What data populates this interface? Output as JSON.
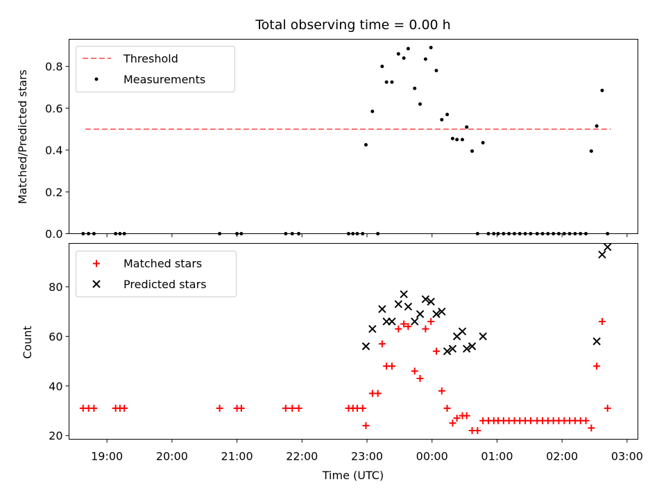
{
  "chart_data": [
    {
      "type": "scatter",
      "title": "Total observing time = 0.00 h",
      "xlabel": "",
      "ylabel": "Matched/Predicted stars",
      "xlim": [
        "18:25",
        "03:10"
      ],
      "ylim": [
        0,
        0.93
      ],
      "yticks": [
        "0.0",
        "0.2",
        "0.4",
        "0.6",
        "0.8"
      ],
      "yticks_values": [
        0,
        0.2,
        0.4,
        0.6,
        0.8
      ],
      "legend": {
        "position": "top-left",
        "entries": [
          "Threshold",
          "Measurements"
        ]
      },
      "threshold": {
        "name": "Threshold",
        "value": 0.5,
        "x_start": "18:40",
        "x_end": "02:45",
        "color": "#ff7070"
      },
      "series": [
        {
          "name": "Measurements",
          "color": "#000000",
          "x": [
            "18:38",
            "18:43",
            "18:48",
            "19:08",
            "19:12",
            "19:16",
            "20:44",
            "21:00",
            "21:04",
            "21:45",
            "21:51",
            "21:57",
            "22:43",
            "22:47",
            "22:51",
            "22:56",
            "22:59",
            "23:05",
            "23:10",
            "23:14",
            "23:18",
            "23:23",
            "23:29",
            "23:34",
            "23:38",
            "23:44",
            "23:49",
            "23:54",
            "23:59",
            "24:04",
            "24:09",
            "24:14",
            "24:19",
            "24:23",
            "24:28",
            "24:32",
            "24:37",
            "24:42",
            "24:47",
            "24:52",
            "24:57",
            "25:01",
            "25:06",
            "25:11",
            "25:16",
            "25:21",
            "25:26",
            "25:31",
            "25:37",
            "25:42",
            "25:47",
            "25:52",
            "25:57",
            "26:02",
            "26:07",
            "26:12",
            "26:17",
            "26:22",
            "26:27",
            "26:32",
            "26:37",
            "26:42"
          ],
          "y": [
            0,
            0,
            0,
            0,
            0,
            0,
            0,
            0,
            0,
            0,
            0,
            0,
            0,
            0,
            0,
            0,
            0.425,
            0.585,
            0,
            0.8,
            0.725,
            0.725,
            0.86,
            0.84,
            0.885,
            0.695,
            0.62,
            0.835,
            0.89,
            0.78,
            0.545,
            0.57,
            0.455,
            0.45,
            0.45,
            0.51,
            0.395,
            0,
            0.435,
            0,
            0,
            0,
            0,
            0,
            0,
            0,
            0,
            0,
            0,
            0,
            0,
            0,
            0,
            0,
            0,
            0,
            0,
            0,
            0.395,
            0.515,
            0.685,
            0
          ]
        }
      ]
    },
    {
      "type": "scatter",
      "title": "",
      "xlabel": "Time (UTC)",
      "ylabel": "Count",
      "xlim": [
        "18:25",
        "03:10"
      ],
      "ylim": [
        18.5,
        97.5
      ],
      "yticks": [
        "20",
        "40",
        "60",
        "80"
      ],
      "yticks_values": [
        20,
        40,
        60,
        80
      ],
      "xticks": [
        "19:00",
        "20:00",
        "21:00",
        "22:00",
        "23:00",
        "00:00",
        "01:00",
        "02:00",
        "03:00"
      ],
      "xticks_values": [
        19,
        20,
        21,
        22,
        23,
        24,
        25,
        26,
        27
      ],
      "legend": {
        "position": "top-left",
        "entries": [
          "Matched stars",
          "Predicted stars"
        ]
      },
      "series": [
        {
          "name": "Matched stars",
          "marker": "plus",
          "color": "#ff0000",
          "x": [
            "18:38",
            "18:43",
            "18:48",
            "19:08",
            "19:12",
            "19:16",
            "20:44",
            "21:00",
            "21:04",
            "21:45",
            "21:51",
            "21:57",
            "22:43",
            "22:47",
            "22:51",
            "22:56",
            "22:59",
            "23:05",
            "23:10",
            "23:14",
            "23:18",
            "23:23",
            "23:29",
            "23:34",
            "23:38",
            "23:44",
            "23:49",
            "23:54",
            "23:59",
            "24:04",
            "24:09",
            "24:14",
            "24:19",
            "24:23",
            "24:28",
            "24:32",
            "24:37",
            "24:42",
            "24:47",
            "24:52",
            "24:57",
            "25:01",
            "25:06",
            "25:11",
            "25:16",
            "25:21",
            "25:26",
            "25:31",
            "25:37",
            "25:42",
            "25:47",
            "25:52",
            "25:57",
            "26:02",
            "26:07",
            "26:12",
            "26:17",
            "26:22",
            "26:27",
            "26:32",
            "26:37",
            "26:42"
          ],
          "y": [
            31,
            31,
            31,
            31,
            31,
            31,
            31,
            31,
            31,
            31,
            31,
            31,
            31,
            31,
            31,
            31,
            24,
            37,
            37,
            57,
            48,
            48,
            63,
            65,
            64,
            46,
            43,
            63,
            66,
            54,
            38,
            31,
            25,
            27,
            28,
            28,
            22,
            22,
            26,
            26,
            26,
            26,
            26,
            26,
            26,
            26,
            26,
            26,
            26,
            26,
            26,
            26,
            26,
            26,
            26,
            26,
            26,
            26,
            23,
            48,
            66,
            31
          ]
        },
        {
          "name": "Predicted stars",
          "marker": "x",
          "color": "#000000",
          "x": [
            "22:59",
            "23:05",
            "23:14",
            "23:18",
            "23:23",
            "23:29",
            "23:34",
            "23:38",
            "23:44",
            "23:49",
            "23:54",
            "23:59",
            "24:04",
            "24:09",
            "24:14",
            "24:19",
            "24:23",
            "24:28",
            "24:32",
            "24:37",
            "24:47",
            "26:32",
            "26:37",
            "26:42"
          ],
          "y": [
            56,
            63,
            71,
            66,
            66,
            73,
            77,
            72,
            66,
            69,
            75,
            74,
            69,
            70,
            54,
            55,
            60,
            62,
            55,
            56,
            60,
            58,
            93,
            96
          ]
        }
      ]
    }
  ]
}
